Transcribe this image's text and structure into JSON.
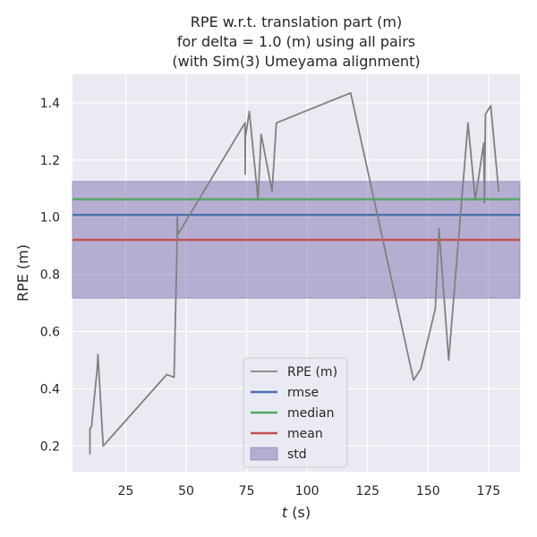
{
  "chart_data": {
    "type": "line",
    "title_lines": [
      "RPE w.r.t. translation part (m)",
      "for delta = 1.0 (m) using all pairs",
      "(with Sim(3) Umeyama alignment)"
    ],
    "xlabel_italic": "t",
    "xlabel_rest": " (s)",
    "ylabel": "RPE (m)",
    "xlim": [
      3,
      188
    ],
    "ylim": [
      0.11,
      1.5
    ],
    "xticks": [
      25,
      50,
      75,
      100,
      125,
      150,
      175
    ],
    "yticks": [
      0.2,
      0.4,
      0.6,
      0.8,
      1.0,
      1.2,
      1.4
    ],
    "grid": true,
    "background": "#eaeaf2",
    "legend_position": "lower-center",
    "series": [
      {
        "name": "RPE (m)",
        "color": "#808080",
        "x": [
          10.2,
          10.2,
          11,
          11,
          13.2,
          13.5,
          15.7,
          42,
          45,
          46.3,
          46.3,
          46.6,
          74.3,
          74.4,
          74.5,
          76.1,
          79.7,
          81,
          85.5,
          87.3,
          118,
          144,
          147,
          153,
          154.5,
          158.5,
          166.5,
          169.5,
          173,
          173.3,
          173.7,
          175.9,
          179.2
        ],
        "y": [
          0.17,
          0.26,
          0.27,
          0.28,
          0.47,
          0.52,
          0.2,
          0.45,
          0.44,
          0.93,
          1.0,
          0.94,
          1.33,
          1.15,
          1.28,
          1.37,
          1.06,
          1.29,
          1.09,
          1.33,
          1.435,
          0.43,
          0.47,
          0.68,
          0.96,
          0.5,
          1.33,
          1.06,
          1.26,
          1.05,
          1.36,
          1.39,
          1.09
        ]
      }
    ],
    "stats": [
      {
        "name": "rmse",
        "value": 1.008,
        "color": "#4c72b0"
      },
      {
        "name": "median",
        "value": 1.063,
        "color": "#55a868"
      },
      {
        "name": "mean",
        "value": 0.921,
        "color": "#c44e52"
      }
    ],
    "std_band": {
      "name": "std",
      "low": 0.717,
      "high": 1.125,
      "color": "#8172b2"
    }
  }
}
